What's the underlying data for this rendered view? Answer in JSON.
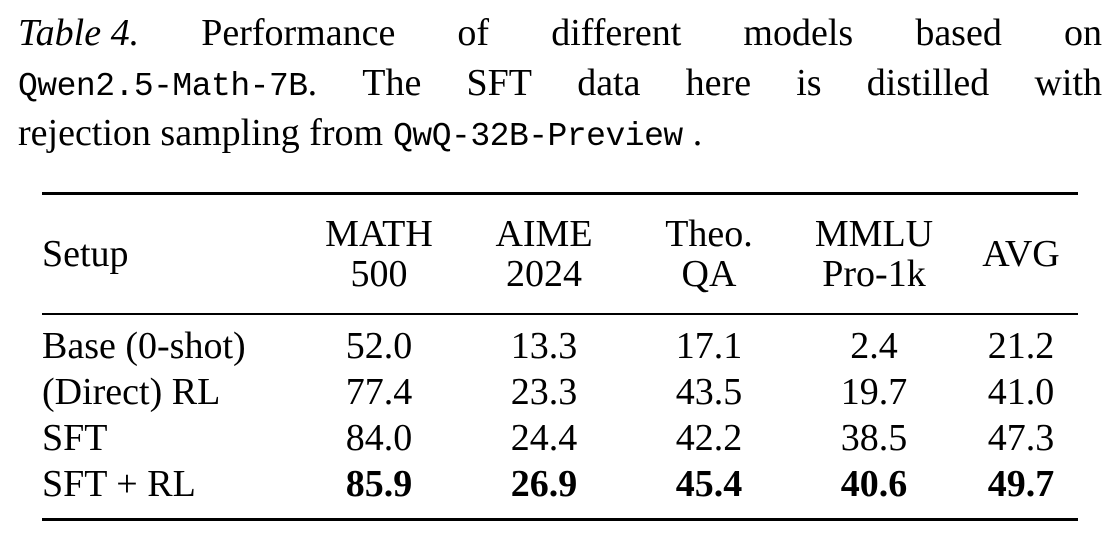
{
  "caption": {
    "label": "Table 4.",
    "line1_words": [
      "Performance",
      "of",
      "different",
      "models",
      "based",
      "on"
    ],
    "model_base": "Qwen2.5-Math-7B",
    "line2_words": [
      ".",
      "The",
      "SFT",
      "data",
      "here",
      "is",
      "distilled",
      "with"
    ],
    "line3_text": "rejection sampling from",
    "model_teacher": "QwQ-32B-Preview",
    "line3_end": "."
  },
  "table": {
    "headers": [
      {
        "line1": "Setup",
        "line2": ""
      },
      {
        "line1": "MATH",
        "line2": "500"
      },
      {
        "line1": "AIME",
        "line2": "2024"
      },
      {
        "line1": "Theo.",
        "line2": "QA"
      },
      {
        "line1": "MMLU",
        "line2": "Pro-1k"
      },
      {
        "line1": "AVG",
        "line2": ""
      }
    ],
    "rows": [
      {
        "setup": "Base (0-shot)",
        "values": [
          "52.0",
          "13.3",
          "17.1",
          "2.4",
          "21.2"
        ]
      },
      {
        "setup": "(Direct) RL",
        "values": [
          "77.4",
          "23.3",
          "43.5",
          "19.7",
          "41.0"
        ]
      },
      {
        "setup": "SFT",
        "values": [
          "84.0",
          "24.4",
          "42.2",
          "38.5",
          "47.3"
        ]
      },
      {
        "setup": "SFT + RL",
        "values": [
          "85.9",
          "26.9",
          "45.4",
          "40.6",
          "49.7"
        ],
        "bold": true
      }
    ]
  }
}
